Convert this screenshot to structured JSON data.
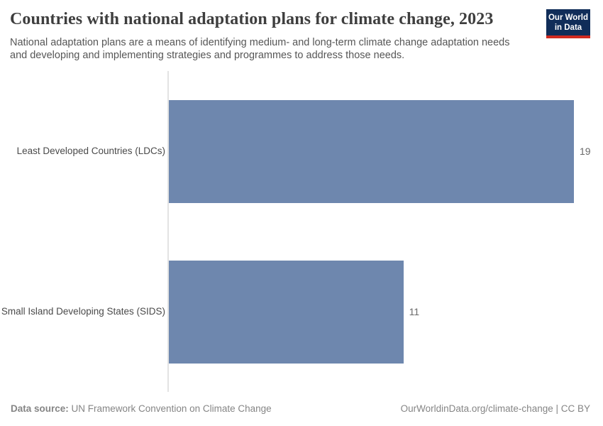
{
  "header": {
    "title": "Countries with national adaptation plans for climate change, 2023",
    "subtitle": "National adaptation plans are a means of identifying medium- and long-term climate change adaptation needs\nand developing and implementing strategies and programmes to address those needs.",
    "logo": {
      "text": "Our World\nin Data",
      "bg_color": "#102d59",
      "accent_color": "#d02a20"
    }
  },
  "chart_data": {
    "type": "bar",
    "orientation": "horizontal",
    "title": "Countries with national adaptation plans for climate change, 2023",
    "categories": [
      "Least Developed Countries (LDCs)",
      "Small Island Developing States (SIDS)"
    ],
    "values": [
      19,
      11
    ],
    "xlabel": "",
    "ylabel": "",
    "xlim": [
      0,
      19
    ],
    "grid": false,
    "legend": "none",
    "bar_color": "#6e87ae",
    "axis_line_color": "#e3e3e3"
  },
  "footer": {
    "source_label": "Data source:",
    "source_text": " UN Framework Convention on Climate Change",
    "right_text": "OurWorldinData.org/climate-change | CC BY"
  }
}
